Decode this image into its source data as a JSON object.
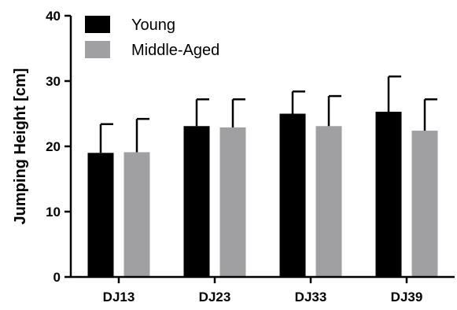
{
  "chart_data": {
    "type": "bar",
    "title": "",
    "xlabel": "",
    "ylabel": "Jumping Height [cm]",
    "ylim": [
      0,
      40
    ],
    "yticks": [
      0,
      10,
      20,
      30,
      40
    ],
    "categories": [
      "DJ13",
      "DJ23",
      "DJ33",
      "DJ39"
    ],
    "series": [
      {
        "name": "Young",
        "color": "#000000",
        "values": [
          19.0,
          23.1,
          25.0,
          25.3
        ],
        "error": [
          4.4,
          4.1,
          3.4,
          5.4
        ]
      },
      {
        "name": "Middle-Aged",
        "color": "#a0a0a2",
        "values": [
          19.1,
          22.9,
          23.1,
          22.4
        ],
        "error": [
          5.1,
          4.3,
          4.6,
          4.8
        ]
      }
    ],
    "error_bars": "upper only",
    "legend": "top-left",
    "grid": false
  }
}
